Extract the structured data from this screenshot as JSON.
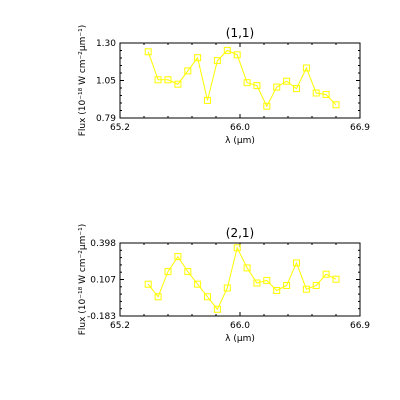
{
  "chart_data": [
    {
      "type": "line",
      "title": "(1,1)",
      "xlabel": "λ (μm)",
      "ylabel": "Flux (10⁻¹⁸ W cm⁻²μm⁻¹)",
      "xlim": [
        65.2,
        66.9
      ],
      "ylim": [
        0.79,
        1.3
      ],
      "xticks": [
        "65.2",
        "66.0",
        "66.9"
      ],
      "yticks": [
        "0.79",
        "1.05",
        "1.30"
      ],
      "x": [
        65.4,
        65.47,
        65.54,
        65.61,
        65.68,
        65.75,
        65.82,
        65.89,
        65.96,
        66.03,
        66.1,
        66.17,
        66.24,
        66.31,
        66.38,
        66.45,
        66.52,
        66.59,
        66.66,
        66.73
      ],
      "series": [
        {
          "color": "#ffff00",
          "marker": "square",
          "values": [
            1.24,
            1.05,
            1.05,
            1.02,
            1.11,
            1.2,
            0.91,
            1.18,
            1.25,
            1.22,
            1.03,
            1.01,
            0.87,
            1.0,
            1.04,
            0.99,
            1.13,
            0.96,
            0.95,
            0.88
          ]
        }
      ]
    },
    {
      "type": "line",
      "title": "(2,1)",
      "xlabel": "λ (μm)",
      "ylabel": "Flux (10⁻¹⁸ W cm⁻²μm⁻¹)",
      "xlim": [
        65.2,
        66.9
      ],
      "ylim": [
        -0.183,
        0.398
      ],
      "xticks": [
        "65.2",
        "66.0",
        "66.9"
      ],
      "yticks": [
        "-0.183",
        "0.107",
        "0.398"
      ],
      "x": [
        65.4,
        65.47,
        65.54,
        65.61,
        65.68,
        65.75,
        65.82,
        65.89,
        65.96,
        66.03,
        66.1,
        66.17,
        66.24,
        66.31,
        66.38,
        66.45,
        66.52,
        66.59,
        66.66,
        66.73
      ],
      "series": [
        {
          "color": "#ffff00",
          "marker": "square",
          "values": [
            0.07,
            -0.03,
            0.17,
            0.29,
            0.17,
            0.07,
            -0.03,
            -0.13,
            0.04,
            0.36,
            0.2,
            0.08,
            0.1,
            0.02,
            0.06,
            0.24,
            0.03,
            0.06,
            0.15,
            0.11
          ]
        }
      ]
    }
  ]
}
